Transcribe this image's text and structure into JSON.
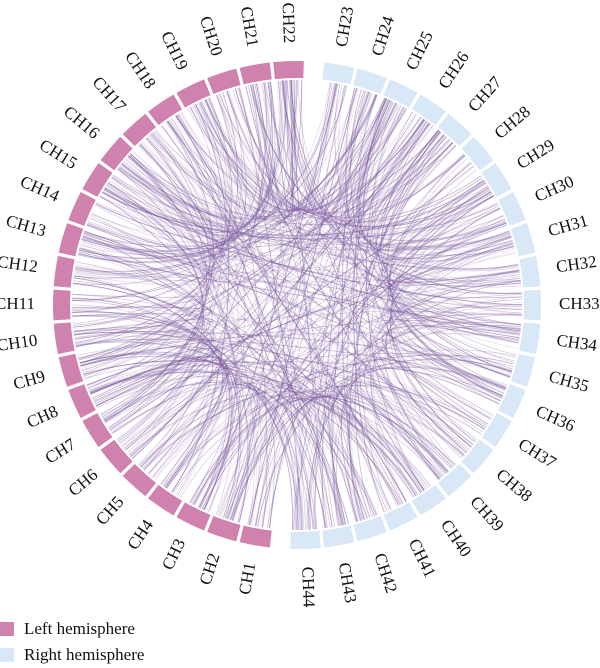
{
  "colors": {
    "left": "#cf82ae",
    "right": "#d8e8f6",
    "chord": "#7d5a9f"
  },
  "channels": {
    "left": [
      "CH1",
      "CH2",
      "CH3",
      "CH4",
      "CH5",
      "CH6",
      "CH7",
      "CH8",
      "CH9",
      "CH10",
      "CH11",
      "CH12",
      "CH13",
      "CH14",
      "CH15",
      "CH16",
      "CH17",
      "CH18",
      "CH19",
      "CH20",
      "CH21",
      "CH22"
    ],
    "right": [
      "CH23",
      "CH24",
      "CH25",
      "CH26",
      "CH27",
      "CH28",
      "CH29",
      "CH30",
      "CH31",
      "CH32",
      "CH33",
      "CH34",
      "CH35",
      "CH36",
      "CH37",
      "CH38",
      "CH39",
      "CH40",
      "CH41",
      "CH42",
      "CH43",
      "CH44"
    ]
  },
  "legend": [
    {
      "label": "Left hemisphere",
      "color": "#cf82ae"
    },
    {
      "label": "Right hemisphere",
      "color": "#d8e8f6"
    }
  ]
}
